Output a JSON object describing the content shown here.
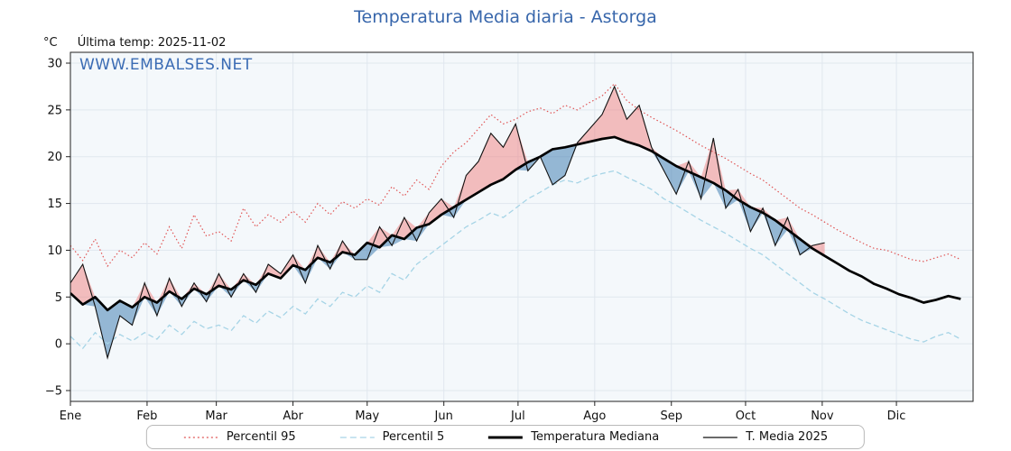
{
  "header": {
    "title": "Temperatura Media diaria - Astorga",
    "y_unit": "°C",
    "last_temp_label": "Última temp: 2025-11-02",
    "watermark": "WWW.EMBALSES.NET"
  },
  "colors": {
    "title_blue": "#3766ab",
    "plot_background": "#f4f8fb",
    "grid": "#e0e7ee",
    "axis": "#222222"
  },
  "legend": {
    "items": [
      {
        "label": "Percentil 95"
      },
      {
        "label": "Percentil 5"
      },
      {
        "label": "Temperatura Mediana"
      },
      {
        "label": "T. Media 2025"
      }
    ]
  },
  "chart_data": {
    "type": "line",
    "title": "Temperatura Media diaria - Astorga",
    "x_axis": {
      "months": [
        "Ene",
        "Feb",
        "Mar",
        "Abr",
        "May",
        "Jun",
        "Jul",
        "Ago",
        "Sep",
        "Oct",
        "Nov",
        "Dic"
      ],
      "month_start_days": [
        0,
        31,
        59,
        90,
        120,
        151,
        181,
        212,
        243,
        273,
        304,
        334
      ],
      "range_days": [
        0,
        365
      ]
    },
    "y_axis": {
      "unit": "°C",
      "ticks": [
        30,
        25,
        20,
        15,
        10,
        5,
        0,
        -5
      ],
      "ylim": [
        -6.2,
        31.2
      ]
    },
    "grid": true,
    "legend_position": "bottom",
    "x_days": [
      0,
      5,
      10,
      15,
      20,
      25,
      30,
      35,
      40,
      45,
      50,
      55,
      60,
      65,
      70,
      75,
      80,
      85,
      90,
      95,
      100,
      105,
      110,
      115,
      120,
      125,
      130,
      135,
      140,
      145,
      150,
      155,
      160,
      165,
      170,
      175,
      180,
      185,
      190,
      195,
      200,
      205,
      210,
      215,
      220,
      225,
      230,
      235,
      240,
      245,
      250,
      255,
      260,
      265,
      270,
      275,
      280,
      285,
      290,
      295,
      300,
      305,
      310,
      315,
      320,
      325,
      330,
      335,
      340,
      345,
      350,
      355,
      360
    ],
    "x_days_2025": [
      0,
      5,
      10,
      15,
      20,
      25,
      30,
      35,
      40,
      45,
      50,
      55,
      60,
      65,
      70,
      75,
      80,
      85,
      90,
      95,
      100,
      105,
      110,
      115,
      120,
      125,
      130,
      135,
      140,
      145,
      150,
      155,
      160,
      165,
      170,
      175,
      180,
      185,
      190,
      195,
      200,
      205,
      210,
      215,
      220,
      225,
      230,
      235,
      240,
      245,
      250,
      255,
      260,
      265,
      270,
      275,
      280,
      285,
      290,
      295,
      300,
      305
    ],
    "series": [
      {
        "name": "Percentil 95",
        "style": "dotted",
        "color": "#e05555",
        "values": [
          10.5,
          8.9,
          11.2,
          8.3,
          10.0,
          9.2,
          10.8,
          9.6,
          12.5,
          10.2,
          13.8,
          11.5,
          12.0,
          11.0,
          14.5,
          12.5,
          13.8,
          13.0,
          14.2,
          13.0,
          15.0,
          13.8,
          15.2,
          14.5,
          15.5,
          14.8,
          16.8,
          15.8,
          17.5,
          16.5,
          19.0,
          20.5,
          21.5,
          23.0,
          24.5,
          23.5,
          24.0,
          24.8,
          25.2,
          24.6,
          25.5,
          25.0,
          25.8,
          26.5,
          27.8,
          26.0,
          25.0,
          24.2,
          23.5,
          22.8,
          22.0,
          21.2,
          20.5,
          19.8,
          19.0,
          18.2,
          17.5,
          16.5,
          15.5,
          14.5,
          13.8,
          13.0,
          12.2,
          11.5,
          10.8,
          10.2,
          10.0,
          9.5,
          9.0,
          8.8,
          9.2,
          9.6,
          9.0
        ]
      },
      {
        "name": "Percentil 5",
        "style": "dashed",
        "color": "#a6d4e6",
        "values": [
          0.8,
          -0.5,
          1.2,
          0.0,
          1.0,
          0.3,
          1.2,
          0.5,
          2.0,
          1.0,
          2.4,
          1.6,
          2.0,
          1.4,
          3.0,
          2.2,
          3.5,
          2.8,
          4.0,
          3.2,
          4.8,
          4.0,
          5.5,
          5.0,
          6.2,
          5.5,
          7.5,
          6.8,
          8.5,
          9.5,
          10.5,
          11.5,
          12.5,
          13.2,
          14.0,
          13.5,
          14.5,
          15.5,
          16.2,
          17.0,
          17.5,
          17.2,
          17.8,
          18.2,
          18.5,
          17.8,
          17.2,
          16.5,
          15.5,
          14.8,
          14.0,
          13.2,
          12.5,
          11.8,
          11.0,
          10.2,
          9.5,
          8.5,
          7.5,
          6.5,
          5.5,
          4.8,
          4.0,
          3.2,
          2.5,
          2.0,
          1.5,
          1.0,
          0.5,
          0.2,
          0.8,
          1.2,
          0.5
        ]
      },
      {
        "name": "Temperatura Mediana",
        "style": "solid-thick",
        "color": "#000000",
        "values": [
          5.4,
          4.2,
          5.0,
          3.6,
          4.6,
          3.9,
          5.0,
          4.4,
          5.6,
          4.8,
          5.9,
          5.3,
          6.2,
          5.8,
          6.8,
          6.3,
          7.5,
          7.0,
          8.4,
          7.9,
          9.2,
          8.7,
          9.8,
          9.5,
          10.8,
          10.3,
          11.6,
          11.2,
          12.4,
          12.8,
          13.8,
          14.6,
          15.4,
          16.2,
          17.0,
          17.6,
          18.6,
          19.4,
          20.0,
          20.8,
          21.0,
          21.3,
          21.6,
          21.9,
          22.1,
          21.6,
          21.2,
          20.6,
          19.8,
          19.0,
          18.4,
          17.8,
          17.2,
          16.4,
          15.4,
          14.6,
          14.0,
          13.2,
          12.2,
          11.2,
          10.2,
          9.4,
          8.6,
          7.8,
          7.2,
          6.4,
          5.9,
          5.3,
          4.9,
          4.4,
          4.7,
          5.1,
          4.8
        ]
      },
      {
        "name": "T. Media 2025",
        "style": "solid-thin",
        "color": "#111111",
        "ends": "2025-11-02",
        "values": [
          6.5,
          8.5,
          4.0,
          -1.5,
          3.0,
          2.0,
          6.5,
          3.0,
          7.0,
          4.0,
          6.5,
          4.5,
          7.5,
          5.0,
          7.5,
          5.5,
          8.5,
          7.5,
          9.5,
          6.5,
          10.5,
          8.0,
          11.0,
          9.0,
          9.0,
          12.5,
          10.5,
          13.5,
          11.0,
          14.0,
          15.5,
          13.5,
          18.0,
          19.5,
          22.5,
          21.0,
          23.5,
          18.5,
          20.0,
          17.0,
          18.0,
          21.5,
          23.0,
          24.5,
          27.5,
          24.0,
          25.5,
          21.0,
          18.5,
          16.0,
          19.5,
          15.5,
          22.0,
          14.5,
          16.5,
          12.0,
          14.5,
          10.5,
          13.5,
          9.5,
          10.5,
          10.8
        ]
      }
    ],
    "fills": {
      "above_median_color": "#f08080",
      "above_opacity": 0.5,
      "below_median_color": "#4682b4",
      "below_opacity": 0.55
    }
  }
}
